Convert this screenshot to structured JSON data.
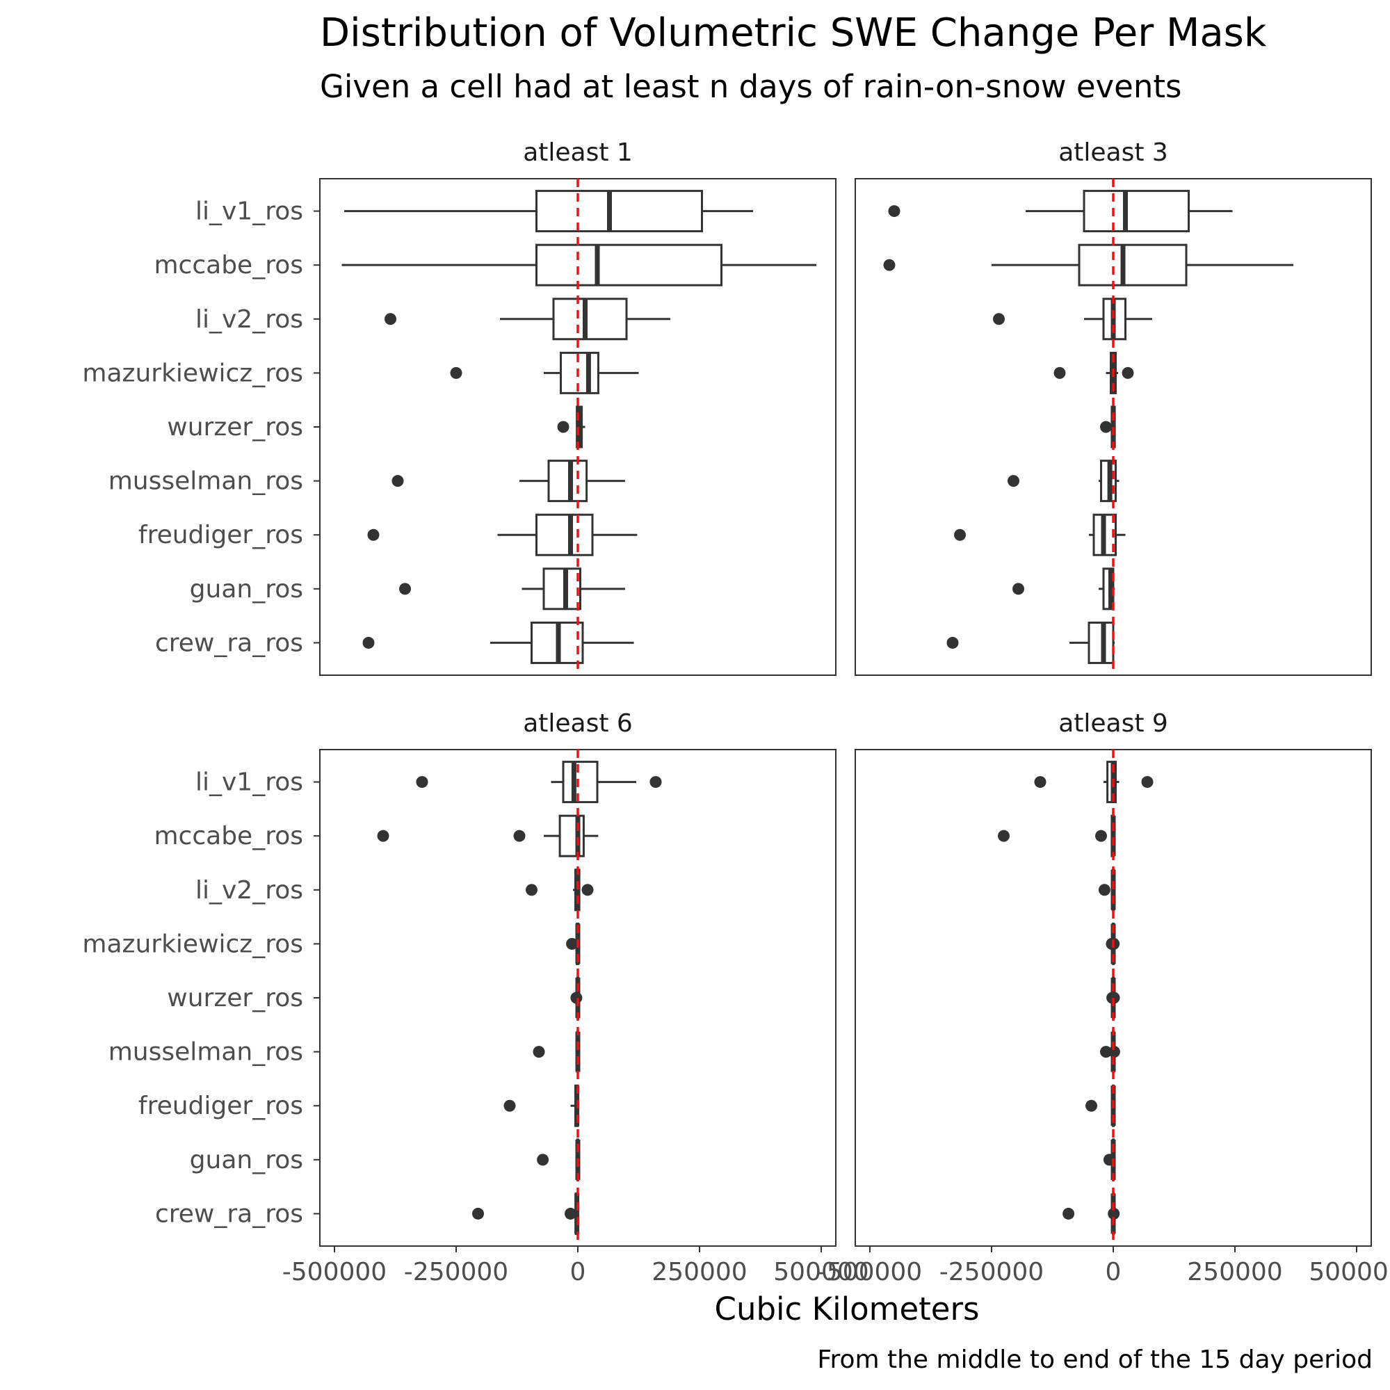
{
  "title": "Distribution of Volumetric SWE Change Per Mask",
  "subtitle": "Given a cell had at least n days of rain-on-snow events",
  "caption": "From the middle to end of the 15 day period",
  "chart_data": {
    "type": "boxplot",
    "orientation": "horizontal",
    "xlabel": "Cubic Kilometers",
    "ylabel": "",
    "xlim": [
      -530000,
      530000
    ],
    "xticks": [
      -500000,
      -250000,
      0,
      250000,
      500000
    ],
    "xtick_labels": [
      "-500000",
      "-250000",
      "0",
      "250000",
      "500000"
    ],
    "reference_line": {
      "x": 0,
      "color": "#ee1111",
      "style": "dashed"
    },
    "categories": [
      "li_v1_ros",
      "mccabe_ros",
      "li_v2_ros",
      "mazurkiewicz_ros",
      "wurzer_ros",
      "musselman_ros",
      "freudiger_ros",
      "guan_ros",
      "crew_ra_ros"
    ],
    "box_color": "#333333",
    "panels": [
      {
        "label": "atleast 1",
        "boxes": [
          {
            "category": "li_v1_ros",
            "whisker_low": -480000,
            "q1": -85000,
            "median": 65000,
            "q3": 255000,
            "whisker_high": 360000,
            "outliers": []
          },
          {
            "category": "mccabe_ros",
            "whisker_low": -485000,
            "q1": -85000,
            "median": 40000,
            "q3": 295000,
            "whisker_high": 490000,
            "outliers": []
          },
          {
            "category": "li_v2_ros",
            "whisker_low": -160000,
            "q1": -50000,
            "median": 15000,
            "q3": 100000,
            "whisker_high": 190000,
            "outliers": [
              -385000
            ]
          },
          {
            "category": "mazurkiewicz_ros",
            "whisker_low": -70000,
            "q1": -35000,
            "median": 22000,
            "q3": 42000,
            "whisker_high": 125000,
            "outliers": [
              -250000
            ]
          },
          {
            "category": "wurzer_ros",
            "whisker_low": -3000,
            "q1": -2000,
            "median": 3000,
            "q3": 8000,
            "whisker_high": 15000,
            "outliers": [
              -30000
            ]
          },
          {
            "category": "musselman_ros",
            "whisker_low": -120000,
            "q1": -60000,
            "median": -15000,
            "q3": 18000,
            "whisker_high": 97000,
            "outliers": [
              -370000
            ]
          },
          {
            "category": "freudiger_ros",
            "whisker_low": -165000,
            "q1": -85000,
            "median": -15000,
            "q3": 30000,
            "whisker_high": 122000,
            "outliers": [
              -420000
            ]
          },
          {
            "category": "guan_ros",
            "whisker_low": -115000,
            "q1": -70000,
            "median": -25000,
            "q3": 5000,
            "whisker_high": 97000,
            "outliers": [
              -355000
            ]
          },
          {
            "category": "crew_ra_ros",
            "whisker_low": -180000,
            "q1": -95000,
            "median": -40000,
            "q3": 10000,
            "whisker_high": 115000,
            "outliers": [
              -430000
            ]
          }
        ]
      },
      {
        "label": "atleast 3",
        "boxes": [
          {
            "category": "li_v1_ros",
            "whisker_low": -180000,
            "q1": -60000,
            "median": 25000,
            "q3": 155000,
            "whisker_high": 245000,
            "outliers": [
              -450000
            ]
          },
          {
            "category": "mccabe_ros",
            "whisker_low": -250000,
            "q1": -70000,
            "median": 20000,
            "q3": 150000,
            "whisker_high": 370000,
            "outliers": [
              -460000
            ]
          },
          {
            "category": "li_v2_ros",
            "whisker_low": -60000,
            "q1": -20000,
            "median": 0,
            "q3": 25000,
            "whisker_high": 80000,
            "outliers": [
              -235000
            ]
          },
          {
            "category": "mazurkiewicz_ros",
            "whisker_low": -15000,
            "q1": -5000,
            "median": 0,
            "q3": 5000,
            "whisker_high": 10000,
            "outliers": [
              -110000,
              30000
            ]
          },
          {
            "category": "wurzer_ros",
            "whisker_low": -5000,
            "q1": -3000,
            "median": 0,
            "q3": 3000,
            "whisker_high": 5000,
            "outliers": [
              -15000
            ]
          },
          {
            "category": "musselman_ros",
            "whisker_low": -30000,
            "q1": -25000,
            "median": -7000,
            "q3": 5000,
            "whisker_high": 12000,
            "outliers": [
              -205000
            ]
          },
          {
            "category": "freudiger_ros",
            "whisker_low": -50000,
            "q1": -40000,
            "median": -20000,
            "q3": 5000,
            "whisker_high": 25000,
            "outliers": [
              -315000
            ]
          },
          {
            "category": "guan_ros",
            "whisker_low": -30000,
            "q1": -20000,
            "median": -5000,
            "q3": 0,
            "whisker_high": 3000,
            "outliers": [
              -195000
            ]
          },
          {
            "category": "crew_ra_ros",
            "whisker_low": -90000,
            "q1": -50000,
            "median": -20000,
            "q3": 0,
            "whisker_high": 3000,
            "outliers": [
              -330000
            ]
          }
        ]
      },
      {
        "label": "atleast 6",
        "boxes": [
          {
            "category": "li_v1_ros",
            "whisker_low": -55000,
            "q1": -30000,
            "median": -8000,
            "q3": 40000,
            "whisker_high": 120000,
            "outliers": [
              -320000,
              160000
            ]
          },
          {
            "category": "mccabe_ros",
            "whisker_low": -70000,
            "q1": -37000,
            "median": 0,
            "q3": 12000,
            "whisker_high": 42000,
            "outliers": [
              -400000,
              -120000
            ]
          },
          {
            "category": "li_v2_ros",
            "whisker_low": -10000,
            "q1": -5000,
            "median": 0,
            "q3": 3000,
            "whisker_high": 5000,
            "outliers": [
              -95000,
              20000
            ]
          },
          {
            "category": "mazurkiewicz_ros",
            "whisker_low": -3000,
            "q1": -2000,
            "median": 0,
            "q3": 1000,
            "whisker_high": 2000,
            "outliers": [
              -12000
            ]
          },
          {
            "category": "wurzer_ros",
            "whisker_low": -2000,
            "q1": -1000,
            "median": 0,
            "q3": 1000,
            "whisker_high": 1500,
            "outliers": [
              -3000
            ]
          },
          {
            "category": "musselman_ros",
            "whisker_low": -2000,
            "q1": -1000,
            "median": 0,
            "q3": 500,
            "whisker_high": 1000,
            "outliers": [
              -80000
            ]
          },
          {
            "category": "freudiger_ros",
            "whisker_low": -15000,
            "q1": -5000,
            "median": -2000,
            "q3": 0,
            "whisker_high": 1000,
            "outliers": [
              -140000
            ]
          },
          {
            "category": "guan_ros",
            "whisker_low": -2000,
            "q1": -1000,
            "median": 0,
            "q3": 500,
            "whisker_high": 1000,
            "outliers": [
              -72000
            ]
          },
          {
            "category": "crew_ra_ros",
            "whisker_low": -5000,
            "q1": -4000,
            "median": -2000,
            "q3": 0,
            "whisker_high": 1000,
            "outliers": [
              -205000,
              -15000
            ]
          }
        ]
      },
      {
        "label": "atleast 9",
        "boxes": [
          {
            "category": "li_v1_ros",
            "whisker_low": -20000,
            "q1": -12000,
            "median": 0,
            "q3": 5000,
            "whisker_high": 12000,
            "outliers": [
              -150000,
              70000
            ]
          },
          {
            "category": "mccabe_ros",
            "whisker_low": -5000,
            "q1": -3000,
            "median": 0,
            "q3": 1000,
            "whisker_high": 2000,
            "outliers": [
              -225000,
              -25000
            ]
          },
          {
            "category": "li_v2_ros",
            "whisker_low": -2000,
            "q1": -1000,
            "median": 0,
            "q3": 1000,
            "whisker_high": 2000,
            "outliers": [
              -18000
            ]
          },
          {
            "category": "mazurkiewicz_ros",
            "whisker_low": -1000,
            "q1": -500,
            "median": 0,
            "q3": 500,
            "whisker_high": 1000,
            "outliers": [
              -3000,
              1000
            ]
          },
          {
            "category": "wurzer_ros",
            "whisker_low": -1000,
            "q1": -500,
            "median": 0,
            "q3": 500,
            "whisker_high": 1000,
            "outliers": [
              -2000,
              1500
            ]
          },
          {
            "category": "musselman_ros",
            "whisker_low": -1000,
            "q1": -500,
            "median": 0,
            "q3": 500,
            "whisker_high": 1000,
            "outliers": [
              -15000,
              2000
            ]
          },
          {
            "category": "freudiger_ros",
            "whisker_low": -1000,
            "q1": -500,
            "median": 0,
            "q3": 500,
            "whisker_high": 1000,
            "outliers": [
              -45000
            ]
          },
          {
            "category": "guan_ros",
            "whisker_low": -1000,
            "q1": -500,
            "median": 0,
            "q3": 500,
            "whisker_high": 1000,
            "outliers": [
              -8000
            ]
          },
          {
            "category": "crew_ra_ros",
            "whisker_low": -1000,
            "q1": -500,
            "median": 0,
            "q3": 500,
            "whisker_high": 1000,
            "outliers": [
              -92000,
              1000
            ]
          }
        ]
      }
    ]
  }
}
